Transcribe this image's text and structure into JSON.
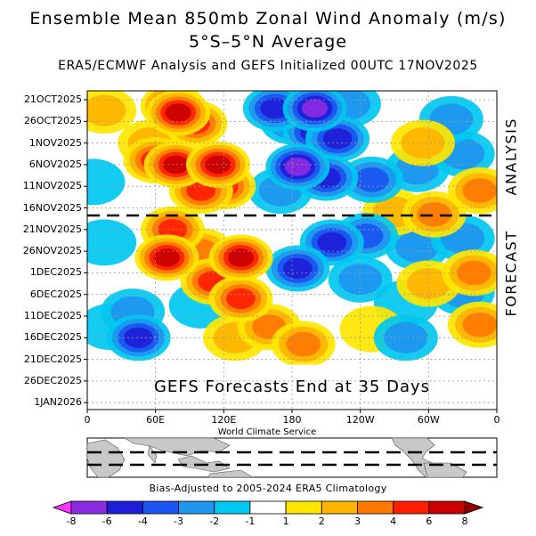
{
  "chart_data": {
    "type": "heatmap",
    "title": "Ensemble Mean 850mb Zonal Wind Anomaly (m/s)",
    "subtitle": "5°S–5°N Average",
    "subtitle2": "ERA5/ECMWF Analysis and GEFS Initialized 00UTC 17NOV2025",
    "y_tick_labels": [
      "21OCT2025",
      "26OCT2025",
      "1NOV2025",
      "6NOV2025",
      "11NOV2025",
      "16NOV2025",
      "21NOV2025",
      "26NOV2025",
      "1DEC2025",
      "6DEC2025",
      "11DEC2025",
      "16DEC2025",
      "21DEC2025",
      "26DEC2025",
      "1JAN2026"
    ],
    "x_tick_labels": [
      "0",
      "60E",
      "120E",
      "180",
      "120W",
      "60W",
      "0"
    ],
    "x_range_deg": [
      0,
      360
    ],
    "colorbar": {
      "labels": [
        "-8",
        "-6",
        "-4",
        "-3",
        "-2",
        "-1",
        "1",
        "2",
        "3",
        "4",
        "6",
        "8"
      ],
      "colors": [
        "#ff33ff",
        "#8b2be2",
        "#1e1ed8",
        "#1a55f0",
        "#1e96f0",
        "#00c8f0",
        "#ffffff",
        "#ffe600",
        "#ffb400",
        "#ff7800",
        "#ff1e00",
        "#c80000",
        "#8c0000"
      ]
    },
    "regions": [
      {
        "label": "Analysis",
        "text": "ANALYSIS"
      },
      {
        "label": "Forecast",
        "text": "FORECAST"
      }
    ],
    "split_date": "16NOV2025",
    "annotation": "GEFS Forecasts End at 35 Days",
    "credit": "World Climate Service",
    "footnote": "Bias-Adjusted to 2005-2024 ERA5 Climatology",
    "anomaly_blobs": [
      {
        "lon": 75,
        "row": 0.3,
        "value": 6,
        "desc": "Oct W. Pacific westerly"
      },
      {
        "lon": 80,
        "row": 0.6,
        "value": 6
      },
      {
        "lon": 95,
        "row": 1.1,
        "value": 4
      },
      {
        "lon": 60,
        "row": 2.8,
        "value": 4
      },
      {
        "lon": 78,
        "row": 3.0,
        "value": 6
      },
      {
        "lon": 115,
        "row": 3.0,
        "value": 6
      },
      {
        "lon": 120,
        "row": 4.0,
        "value": 4
      },
      {
        "lon": 100,
        "row": 4.2,
        "value": 4
      },
      {
        "lon": 75,
        "row": 6.0,
        "value": 4
      },
      {
        "lon": 70,
        "row": 7.3,
        "value": 6
      },
      {
        "lon": 100,
        "row": 7.0,
        "value": 3
      },
      {
        "lon": 135,
        "row": 7.3,
        "value": 6
      },
      {
        "lon": 110,
        "row": 8.4,
        "value": 4
      },
      {
        "lon": 135,
        "row": 9.2,
        "value": 4
      },
      {
        "lon": 160,
        "row": 10.5,
        "value": 3
      },
      {
        "lon": 190,
        "row": 11.3,
        "value": 3
      },
      {
        "lon": 130,
        "row": 11.0,
        "value": 2
      },
      {
        "lon": 55,
        "row": 2.0,
        "value": 2
      },
      {
        "lon": 15,
        "row": 0.5,
        "value": 2
      },
      {
        "lon": 180,
        "row": 1.0,
        "value": -3
      },
      {
        "lon": 200,
        "row": 1.5,
        "value": -4
      },
      {
        "lon": 165,
        "row": 0.4,
        "value": -4
      },
      {
        "lon": 200,
        "row": 0.4,
        "value": -6
      },
      {
        "lon": 220,
        "row": 1.8,
        "value": -4
      },
      {
        "lon": 185,
        "row": 3.1,
        "value": -6
      },
      {
        "lon": 210,
        "row": 3.6,
        "value": -4
      },
      {
        "lon": 250,
        "row": 3.7,
        "value": -3
      },
      {
        "lon": 290,
        "row": 3.2,
        "value": -2
      },
      {
        "lon": 330,
        "row": 2.5,
        "value": -2
      },
      {
        "lon": 320,
        "row": 0.9,
        "value": -2
      },
      {
        "lon": 170,
        "row": 4.2,
        "value": -2
      },
      {
        "lon": 215,
        "row": 6.6,
        "value": -4
      },
      {
        "lon": 245,
        "row": 6.3,
        "value": -3
      },
      {
        "lon": 185,
        "row": 7.8,
        "value": -4
      },
      {
        "lon": 240,
        "row": 8.3,
        "value": -2
      },
      {
        "lon": 290,
        "row": 6.8,
        "value": -2
      },
      {
        "lon": 330,
        "row": 6.4,
        "value": -2
      },
      {
        "lon": 330,
        "row": 8.9,
        "value": -2
      },
      {
        "lon": 280,
        "row": 9.4,
        "value": -1
      },
      {
        "lon": 280,
        "row": 11.0,
        "value": -2
      },
      {
        "lon": 40,
        "row": 9.8,
        "value": -2
      },
      {
        "lon": 45,
        "row": 11.0,
        "value": -4
      },
      {
        "lon": 20,
        "row": 10.5,
        "value": -1
      },
      {
        "lon": 15,
        "row": 6.6,
        "value": -1
      },
      {
        "lon": 270,
        "row": 5.2,
        "value": 2
      },
      {
        "lon": 305,
        "row": 5.3,
        "value": 3
      },
      {
        "lon": 300,
        "row": 8.5,
        "value": 2
      },
      {
        "lon": 345,
        "row": 10.4,
        "value": 3
      },
      {
        "lon": 340,
        "row": 8.0,
        "value": 3
      },
      {
        "lon": 295,
        "row": 2.0,
        "value": 2
      },
      {
        "lon": 345,
        "row": 4.2,
        "value": 3
      },
      {
        "lon": 5,
        "row": 3.8,
        "value": -1
      },
      {
        "lon": 100,
        "row": 9.5,
        "value": -1
      },
      {
        "lon": 250,
        "row": 10.6,
        "value": 1
      },
      {
        "lon": 230,
        "row": 0.2,
        "value": -2
      }
    ]
  },
  "inset_map": {
    "label": "World Climate Service",
    "band": "5S-5N"
  }
}
